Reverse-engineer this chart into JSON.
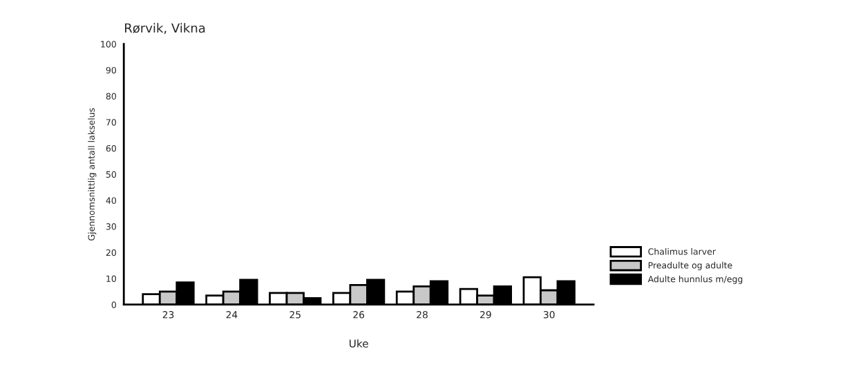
{
  "chart_data": {
    "type": "bar",
    "title": "Rørvik, Vikna",
    "xlabel": "Uke",
    "ylabel": "Gjennomsnittlig antall lakselus",
    "categories": [
      "23",
      "24",
      "25",
      "26",
      "28",
      "29",
      "30"
    ],
    "series": [
      {
        "name": "Chalimus larver",
        "color": "#ffffff",
        "values": [
          4,
          3.5,
          4.5,
          4.5,
          5,
          6,
          10.5
        ]
      },
      {
        "name": "Preadulte og adulte",
        "color": "#c8c8c8",
        "values": [
          5,
          5,
          4.5,
          7.5,
          7,
          3.5,
          5.5
        ]
      },
      {
        "name": "Adulte hunnlus m/egg",
        "color": "#000000",
        "values": [
          8.5,
          9.5,
          2.5,
          9.5,
          9,
          7,
          9
        ]
      }
    ],
    "ylim": [
      0,
      100
    ],
    "yticks": [
      0,
      10,
      20,
      30,
      40,
      50,
      60,
      70,
      80,
      90,
      100
    ],
    "grid": false,
    "legend": "right"
  }
}
